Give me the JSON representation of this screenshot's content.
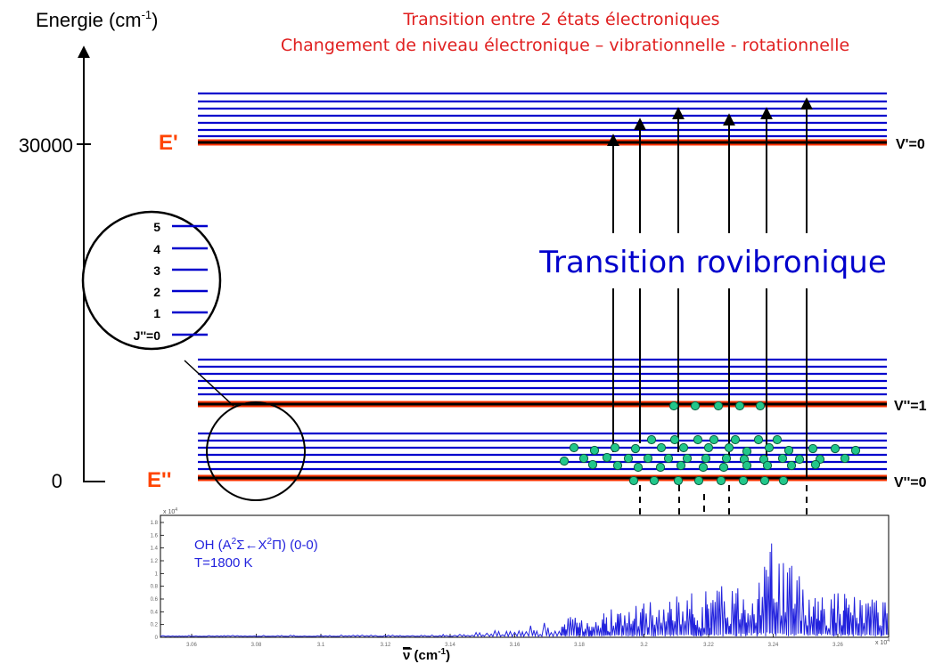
{
  "header": {
    "line1": "Transition entre 2 états électroniques",
    "line2": "Changement de niveau électronique – vibrationnelle - rotationnelle"
  },
  "axis": {
    "label": "Energie (cm",
    "label_sup": "-1",
    "label_close": ")",
    "tick_top": "30000",
    "tick_bottom": "0"
  },
  "states": {
    "upper": "E'",
    "lower": "E''",
    "v_upper": "V'=0",
    "v_lower1": "V''=1",
    "v_lower0": "V''=0"
  },
  "transition_label": "Transition rovibronique",
  "zoom": {
    "levels": [
      "5",
      "4",
      "3",
      "2",
      "1",
      "J''=0"
    ]
  },
  "spectrum": {
    "title_prefix": "OH (A",
    "title_sup1": "2",
    "title_sigma": "Σ",
    "title_arrow": "←",
    "title_x": "X",
    "title_sup2": "2",
    "title_pi": "Π",
    "title_suffix": ") (0-0)",
    "temperature": "T=1800 K",
    "xlabel": "ν",
    "xlabel_unit": " (cm",
    "xlabel_sup": "-1",
    "xlabel_close": ")",
    "x_ticks": [
      "3.06",
      "3.08",
      "3.1",
      "3.12",
      "3.14",
      "3.16",
      "3.18",
      "3.2",
      "3.22",
      "3.24",
      "3.26"
    ],
    "y_ticks": [
      "0",
      "0.2",
      "0.4",
      "0.6",
      "0.8",
      "1",
      "1.2",
      "1.4",
      "1.6",
      "1.8"
    ],
    "x_exponent": "x 10",
    "x_exponent_sup": "4",
    "y_exponent": "x 10",
    "y_exponent_sup": "4"
  },
  "colors": {
    "title": "#e02020",
    "levels": "#0000cc",
    "ground_line": "#000000",
    "ground_glow": "#ff3300",
    "state_label": "#ff4400",
    "molecule_fill": "#22c78a",
    "molecule_stroke": "#0b5e3f",
    "spectrum": "#2222dd"
  }
}
